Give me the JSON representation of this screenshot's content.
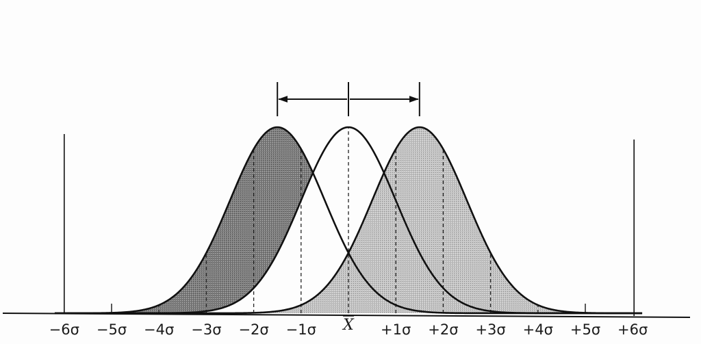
{
  "diagram": {
    "axis_labels": [
      "−6σ",
      "−5σ",
      "−4σ",
      "−3σ",
      "−2σ",
      "−1σ",
      "X",
      "+1σ",
      "+2σ",
      "+3σ",
      "+4σ",
      "+5σ",
      "+6σ"
    ],
    "axis_values": [
      -6,
      -5,
      -4,
      -3,
      -2,
      -1,
      0,
      1,
      2,
      3,
      4,
      5,
      6
    ],
    "mean_label_index": 6,
    "curves": [
      {
        "id": "left-shifted",
        "mean": -1.5,
        "sigma": 1,
        "fill": "#8c8c8c",
        "shade": "dark"
      },
      {
        "id": "centered",
        "mean": 0,
        "sigma": 1,
        "fill": "none",
        "shade": "none"
      },
      {
        "id": "right-shifted",
        "mean": 1.5,
        "sigma": 1,
        "fill": "#c9c9c9",
        "shade": "light"
      }
    ],
    "shift_arrows": [
      {
        "from": 0,
        "to": -1.5
      },
      {
        "from": 0,
        "to": 1.5
      }
    ],
    "colors": {
      "line": "#111111",
      "dark_fill": "#8c8c8c",
      "light_fill": "#c9c9c9",
      "background": "#fdfdfd"
    }
  }
}
